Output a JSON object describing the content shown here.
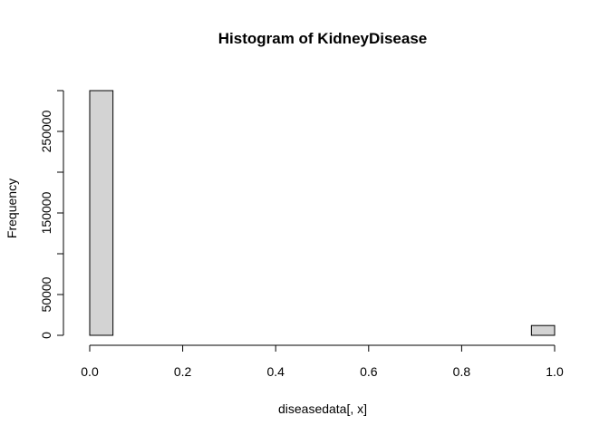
{
  "chart_data": {
    "type": "bar",
    "title": "Histogram of KidneyDisease",
    "xlabel": "diseasedata[, x]",
    "ylabel": "Frequency",
    "bin_width": 0.05,
    "xlim": [
      0,
      1
    ],
    "ylim": [
      0,
      300000
    ],
    "x_ticks": [
      "0.0",
      "0.2",
      "0.4",
      "0.6",
      "0.8",
      "1.0"
    ],
    "y_ticks": [
      "0",
      "50000",
      "150000",
      "250000"
    ],
    "bins": [
      {
        "start": 0.0,
        "end": 0.05,
        "count": 300000
      },
      {
        "start": 0.05,
        "end": 0.1,
        "count": 0
      },
      {
        "start": 0.1,
        "end": 0.15,
        "count": 0
      },
      {
        "start": 0.15,
        "end": 0.2,
        "count": 0
      },
      {
        "start": 0.2,
        "end": 0.25,
        "count": 0
      },
      {
        "start": 0.25,
        "end": 0.3,
        "count": 0
      },
      {
        "start": 0.3,
        "end": 0.35,
        "count": 0
      },
      {
        "start": 0.35,
        "end": 0.4,
        "count": 0
      },
      {
        "start": 0.4,
        "end": 0.45,
        "count": 0
      },
      {
        "start": 0.45,
        "end": 0.5,
        "count": 0
      },
      {
        "start": 0.5,
        "end": 0.55,
        "count": 0
      },
      {
        "start": 0.55,
        "end": 0.6,
        "count": 0
      },
      {
        "start": 0.6,
        "end": 0.65,
        "count": 0
      },
      {
        "start": 0.65,
        "end": 0.7,
        "count": 0
      },
      {
        "start": 0.7,
        "end": 0.75,
        "count": 0
      },
      {
        "start": 0.75,
        "end": 0.8,
        "count": 0
      },
      {
        "start": 0.8,
        "end": 0.85,
        "count": 0
      },
      {
        "start": 0.85,
        "end": 0.9,
        "count": 0
      },
      {
        "start": 0.9,
        "end": 0.95,
        "count": 0
      },
      {
        "start": 0.95,
        "end": 1.0,
        "count": 12000
      }
    ],
    "bar_fill": "#d3d3d3",
    "bar_stroke": "#000000"
  }
}
